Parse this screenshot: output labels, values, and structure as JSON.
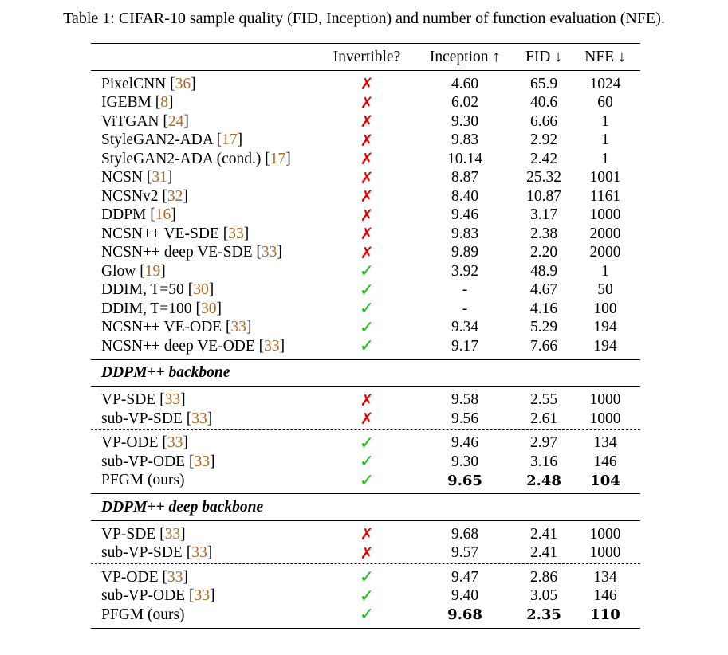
{
  "caption": "Table 1: CIFAR-10 sample quality (FID, Inception) and number of function evaluation (NFE).",
  "symbols": {
    "cross": "✗",
    "check": "✓"
  },
  "colors": {
    "cross": "#e00000",
    "check": "#11c411",
    "citation": "#b5651d"
  },
  "headers": {
    "method": "",
    "invertible": "Invertible?",
    "inception": "Inception ↑",
    "fid": "FID ↓",
    "nfe": "NFE ↓"
  },
  "main_rows": [
    {
      "name": "PixelCNN ",
      "ref": "36",
      "invertible": false,
      "inception": "4.60",
      "fid": "65.9",
      "nfe": "1024"
    },
    {
      "name": "IGEBM ",
      "ref": "8",
      "invertible": false,
      "inception": "6.02",
      "fid": "40.6",
      "nfe": "60"
    },
    {
      "name": "ViTGAN ",
      "ref": "24",
      "invertible": false,
      "inception": "9.30",
      "fid": "6.66",
      "nfe": "1"
    },
    {
      "name": "StyleGAN2-ADA ",
      "ref": "17",
      "invertible": false,
      "inception": "9.83",
      "fid": "2.92",
      "nfe": "1"
    },
    {
      "name": "StyleGAN2-ADA (cond.) ",
      "ref": "17",
      "invertible": false,
      "inception": "10.14",
      "fid": "2.42",
      "nfe": "1"
    },
    {
      "name": "NCSN ",
      "ref": "31",
      "invertible": false,
      "inception": "8.87",
      "fid": "25.32",
      "nfe": "1001"
    },
    {
      "name": "NCSNv2 ",
      "ref": "32",
      "invertible": false,
      "inception": "8.40",
      "fid": "10.87",
      "nfe": "1161"
    },
    {
      "name": "DDPM ",
      "ref": "16",
      "invertible": false,
      "inception": "9.46",
      "fid": "3.17",
      "nfe": "1000"
    },
    {
      "name": "NCSN++ VE-SDE ",
      "ref": "33",
      "invertible": false,
      "inception": "9.83",
      "fid": "2.38",
      "nfe": "2000"
    },
    {
      "name": "NCSN++ deep VE-SDE ",
      "ref": "33",
      "invertible": false,
      "inception": "9.89",
      "fid": "2.20",
      "nfe": "2000"
    },
    {
      "name": "Glow ",
      "ref": "19",
      "invertible": true,
      "inception": "3.92",
      "fid": "48.9",
      "nfe": "1"
    },
    {
      "name": "DDIM, T=50 ",
      "ref": "30",
      "invertible": true,
      "inception": "-",
      "fid": "4.67",
      "nfe": "50"
    },
    {
      "name": "DDIM, T=100 ",
      "ref": "30",
      "invertible": true,
      "inception": "-",
      "fid": "4.16",
      "nfe": "100"
    },
    {
      "name": "NCSN++ VE-ODE ",
      "ref": "33",
      "invertible": true,
      "inception": "9.34",
      "fid": "5.29",
      "nfe": "194"
    },
    {
      "name": "NCSN++ deep VE-ODE ",
      "ref": "33",
      "invertible": true,
      "inception": "9.17",
      "fid": "7.66",
      "nfe": "194"
    }
  ],
  "sections": [
    {
      "title": "DDPM++ backbone",
      "groups": [
        [
          {
            "name": "VP-SDE ",
            "ref": "33",
            "invertible": false,
            "inception": "9.58",
            "fid": "2.55",
            "nfe": "1000"
          },
          {
            "name": "sub-VP-SDE ",
            "ref": "33",
            "invertible": false,
            "inception": "9.56",
            "fid": "2.61",
            "nfe": "1000"
          }
        ],
        [
          {
            "name": "VP-ODE ",
            "ref": "33",
            "invertible": true,
            "inception": "9.46",
            "fid": "2.97",
            "nfe": "134"
          },
          {
            "name": "sub-VP-ODE ",
            "ref": "33",
            "invertible": true,
            "inception": "9.30",
            "fid": "3.16",
            "nfe": "146"
          },
          {
            "name": "PFGM (ours)",
            "ref": "",
            "invertible": true,
            "inception": "9.65",
            "fid": "2.48",
            "nfe": "104",
            "bold": true
          }
        ]
      ]
    },
    {
      "title": "DDPM++ deep backbone",
      "groups": [
        [
          {
            "name": "VP-SDE ",
            "ref": "33",
            "invertible": false,
            "inception": "9.68",
            "fid": "2.41",
            "nfe": "1000"
          },
          {
            "name": "sub-VP-SDE ",
            "ref": "33",
            "invertible": false,
            "inception": "9.57",
            "fid": "2.41",
            "nfe": "1000"
          }
        ],
        [
          {
            "name": "VP-ODE ",
            "ref": "33",
            "invertible": true,
            "inception": "9.47",
            "fid": "2.86",
            "nfe": "134"
          },
          {
            "name": "sub-VP-ODE ",
            "ref": "33",
            "invertible": true,
            "inception": "9.40",
            "fid": "3.05",
            "nfe": "146"
          },
          {
            "name": "PFGM (ours)",
            "ref": "",
            "invertible": true,
            "inception": "9.68",
            "fid": "2.35",
            "nfe": "110",
            "bold": true
          }
        ]
      ]
    }
  ]
}
